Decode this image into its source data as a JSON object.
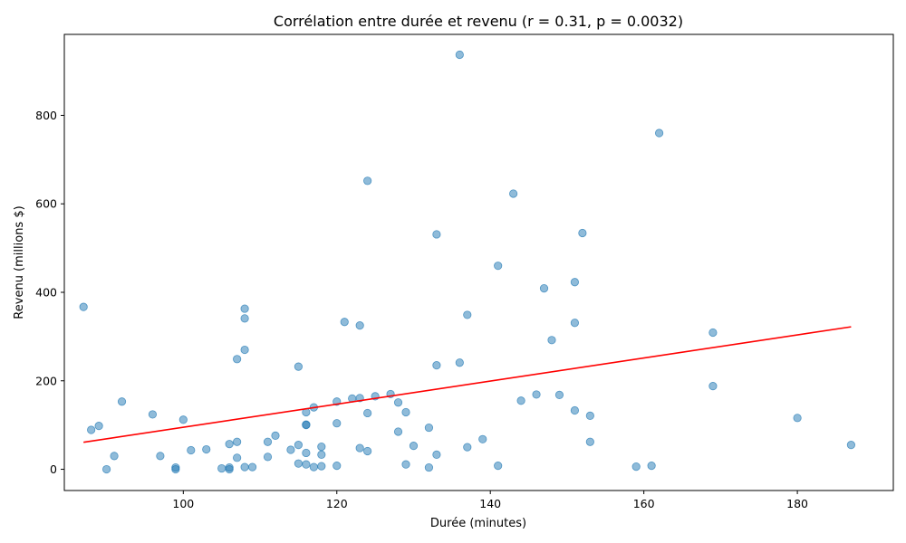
{
  "chart_data": {
    "type": "scatter",
    "title": "Corrélation entre durée et revenu (r = 0.31, p = 0.0032)",
    "xlabel": "Durée (minutes)",
    "ylabel": "Revenu (millions $)",
    "xlim": [
      84.5,
      192.5
    ],
    "ylim": [
      -48,
      983
    ],
    "xticks": [
      100,
      120,
      140,
      160,
      180
    ],
    "yticks": [
      0,
      200,
      400,
      600,
      800
    ],
    "grid": false,
    "point_color": "#1f77b4",
    "trend_color": "#ff0000",
    "trend_line": {
      "x": [
        87,
        187
      ],
      "y": [
        61,
        322
      ]
    },
    "points": [
      [
        136,
        937
      ],
      [
        162,
        760
      ],
      [
        124,
        652
      ],
      [
        143,
        623
      ],
      [
        152,
        534
      ],
      [
        133,
        531
      ],
      [
        141,
        460
      ],
      [
        151,
        423
      ],
      [
        147,
        409
      ],
      [
        87,
        367
      ],
      [
        108,
        363
      ],
      [
        137,
        349
      ],
      [
        108,
        341
      ],
      [
        121,
        333
      ],
      [
        151,
        331
      ],
      [
        123,
        325
      ],
      [
        169,
        309
      ],
      [
        148,
        292
      ],
      [
        108,
        270
      ],
      [
        107,
        249
      ],
      [
        136,
        241
      ],
      [
        133,
        235
      ],
      [
        115,
        232
      ],
      [
        169,
        188
      ],
      [
        127,
        170
      ],
      [
        146,
        169
      ],
      [
        149,
        168
      ],
      [
        125,
        165
      ],
      [
        123,
        161
      ],
      [
        122,
        160
      ],
      [
        144,
        155
      ],
      [
        92,
        153
      ],
      [
        120,
        153
      ],
      [
        128,
        151
      ],
      [
        117,
        140
      ],
      [
        151,
        133
      ],
      [
        129,
        129
      ],
      [
        116,
        129
      ],
      [
        124,
        127
      ],
      [
        96,
        124
      ],
      [
        153,
        121
      ],
      [
        180,
        116
      ],
      [
        100,
        112
      ],
      [
        120,
        104
      ],
      [
        116,
        100
      ],
      [
        116,
        101
      ],
      [
        89,
        98
      ],
      [
        132,
        94
      ],
      [
        88,
        89
      ],
      [
        128,
        85
      ],
      [
        112,
        76
      ],
      [
        139,
        68
      ],
      [
        107,
        62
      ],
      [
        153,
        62
      ],
      [
        111,
        62
      ],
      [
        106,
        57
      ],
      [
        187,
        55
      ],
      [
        115,
        55
      ],
      [
        130,
        53
      ],
      [
        118,
        51
      ],
      [
        137,
        50
      ],
      [
        123,
        48
      ],
      [
        103,
        45
      ],
      [
        114,
        44
      ],
      [
        101,
        43
      ],
      [
        124,
        41
      ],
      [
        116,
        37
      ],
      [
        118,
        33
      ],
      [
        133,
        33
      ],
      [
        91,
        30
      ],
      [
        97,
        30
      ],
      [
        111,
        28
      ],
      [
        107,
        26
      ],
      [
        115,
        13
      ],
      [
        116,
        11
      ],
      [
        129,
        11
      ],
      [
        120,
        8
      ],
      [
        141,
        8
      ],
      [
        161,
        8
      ],
      [
        118,
        7
      ],
      [
        159,
        6
      ],
      [
        108,
        5
      ],
      [
        109,
        5
      ],
      [
        117,
        5
      ],
      [
        132,
        4
      ],
      [
        99,
        4
      ],
      [
        106,
        4
      ],
      [
        105,
        2
      ],
      [
        90,
        0
      ],
      [
        99,
        0
      ],
      [
        106,
        0
      ]
    ]
  }
}
